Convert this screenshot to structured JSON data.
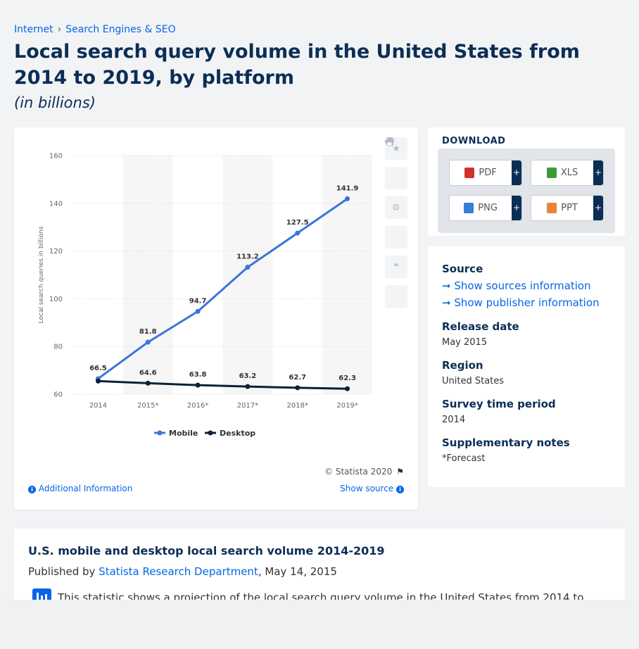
{
  "breadcrumb": {
    "items": [
      "Internet",
      "Search Engines & SEO"
    ],
    "separator": "›"
  },
  "title": "Local search query volume in the United States from 2014 to 2019, by platform",
  "subtitle": "(in billions)",
  "chart_data": {
    "type": "line",
    "categories": [
      "2014",
      "2015*",
      "2016*",
      "2017*",
      "2018*",
      "2019*"
    ],
    "series": [
      {
        "name": "Mobile",
        "color": "#3a76d9",
        "values": [
          66.5,
          81.8,
          94.7,
          113.2,
          127.5,
          141.9
        ]
      },
      {
        "name": "Desktop",
        "color": "#0d2137",
        "values": [
          65.5,
          64.6,
          63.8,
          63.2,
          62.7,
          62.3
        ]
      }
    ],
    "value_labels": {
      "Mobile": [
        "66.5",
        "81.8",
        "94.7",
        "113.2",
        "127.5",
        "141.9"
      ],
      "Desktop": [
        "",
        "64.6",
        "63.8",
        "63.2",
        "62.7",
        "62.3"
      ]
    },
    "ylabel": "Local search queries in billions",
    "xlabel": "",
    "ylim": [
      60,
      160
    ],
    "yticks": [
      60,
      80,
      100,
      120,
      140,
      160
    ],
    "grid": true,
    "legend": "bottom-center"
  },
  "chart": {
    "copyright": "© Statista 2020",
    "additional_info": "Additional Information",
    "show_source": "Show source",
    "toolbar_icons": [
      "star-icon",
      "bell-icon",
      "gear-icon",
      "share-icon",
      "quote-icon",
      "print-icon"
    ]
  },
  "download": {
    "heading": "DOWNLOAD",
    "buttons": [
      {
        "label": "PDF",
        "color": "#d0312d"
      },
      {
        "label": "XLS",
        "color": "#3d9b35"
      },
      {
        "label": "PNG",
        "color": "#3b7dd8"
      },
      {
        "label": "PPT",
        "color": "#e8833a"
      }
    ],
    "plus": "+"
  },
  "meta": {
    "source_label": "Source",
    "show_sources": "Show sources information",
    "show_publisher": "Show publisher information",
    "release_label": "Release date",
    "release_value": "May 2015",
    "region_label": "Region",
    "region_value": "United States",
    "survey_label": "Survey time period",
    "survey_value": "2014",
    "notes_label": "Supplementary notes",
    "notes_value": "*Forecast"
  },
  "description": {
    "heading": "U.S. mobile and desktop local search volume 2014-2019",
    "published_prefix": "Published by",
    "publisher": "Statista Research Department",
    "published_date": ", May 14, 2015",
    "text": "This statistic shows a projection of the local search query volume in the United States from 2014 to"
  },
  "colors": {
    "brand": "#0b2e55",
    "link": "#0666e5",
    "mobile": "#3a76d9",
    "desktop": "#0d2137"
  }
}
